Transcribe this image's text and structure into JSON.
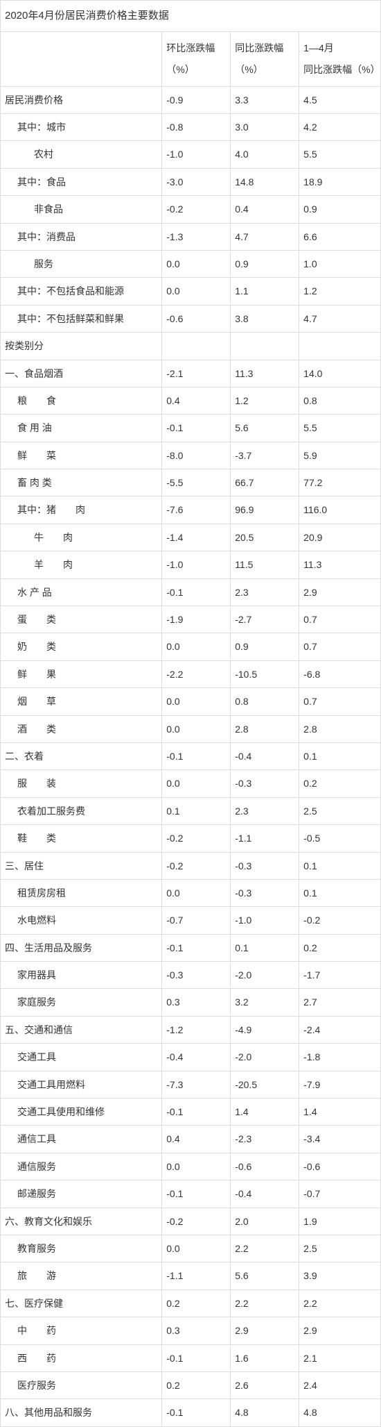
{
  "title": "2020年4月份居民消费价格主要数据",
  "headers": {
    "label": "",
    "col1_line1": "环比涨跌幅",
    "col1_line2": "（%）",
    "col2_line1": "同比涨跌幅",
    "col2_line2": "（%）",
    "col3_line1": "1—4月",
    "col3_line2": "同比涨跌幅（%）"
  },
  "rows": [
    {
      "label": "居民消费价格",
      "indent": 0,
      "c1": "-0.9",
      "c2": "3.3",
      "c3": "4.5"
    },
    {
      "label": "其中：城市",
      "indent": 1,
      "c1": "-0.8",
      "c2": "3.0",
      "c3": "4.2"
    },
    {
      "label": "农村",
      "indent": 2,
      "c1": "-1.0",
      "c2": "4.0",
      "c3": "5.5"
    },
    {
      "label": "其中：食品",
      "indent": 1,
      "c1": "-3.0",
      "c2": "14.8",
      "c3": "18.9"
    },
    {
      "label": "非食品",
      "indent": 2,
      "c1": "-0.2",
      "c2": "0.4",
      "c3": "0.9"
    },
    {
      "label": "其中：消费品",
      "indent": 1,
      "c1": "-1.3",
      "c2": "4.7",
      "c3": "6.6"
    },
    {
      "label": "服务",
      "indent": 2,
      "c1": "0.0",
      "c2": "0.9",
      "c3": "1.0"
    },
    {
      "label": "其中：不包括食品和能源",
      "indent": 1,
      "c1": "0.0",
      "c2": "1.1",
      "c3": "1.2"
    },
    {
      "label": "其中：不包括鲜菜和鲜果",
      "indent": 1,
      "c1": "-0.6",
      "c2": "3.8",
      "c3": "4.7"
    },
    {
      "label": "按类别分",
      "indent": 0,
      "c1": "",
      "c2": "",
      "c3": ""
    },
    {
      "label": "一、食品烟酒",
      "indent": 0,
      "c1": "-2.1",
      "c2": "11.3",
      "c3": "14.0"
    },
    {
      "label": "粮　　食",
      "indent": 1,
      "c1": "0.4",
      "c2": "1.2",
      "c3": "0.8"
    },
    {
      "label": "食 用 油",
      "indent": 1,
      "c1": "-0.1",
      "c2": "5.6",
      "c3": "5.5"
    },
    {
      "label": "鲜　　菜",
      "indent": 1,
      "c1": "-8.0",
      "c2": "-3.7",
      "c3": "5.9"
    },
    {
      "label": "畜 肉 类",
      "indent": 1,
      "c1": "-5.5",
      "c2": "66.7",
      "c3": "77.2"
    },
    {
      "label": "  其中：猪　　肉",
      "indent": 1,
      "c1": "-7.6",
      "c2": "96.9",
      "c3": "116.0"
    },
    {
      "label": "牛　　肉",
      "indent": 2,
      "c1": "-1.4",
      "c2": "20.5",
      "c3": "20.9"
    },
    {
      "label": "羊　　肉",
      "indent": 2,
      "c1": "-1.0",
      "c2": "11.5",
      "c3": "11.3"
    },
    {
      "label": "水 产 品",
      "indent": 1,
      "c1": "-0.1",
      "c2": "2.3",
      "c3": "2.9"
    },
    {
      "label": "蛋　　类",
      "indent": 1,
      "c1": "-1.9",
      "c2": "-2.7",
      "c3": "0.7"
    },
    {
      "label": "奶　　类",
      "indent": 1,
      "c1": "0.0",
      "c2": "0.9",
      "c3": "0.7"
    },
    {
      "label": "鲜　　果",
      "indent": 1,
      "c1": "-2.2",
      "c2": "-10.5",
      "c3": "-6.8"
    },
    {
      "label": "烟　　草",
      "indent": 1,
      "c1": "0.0",
      "c2": "0.8",
      "c3": "0.7"
    },
    {
      "label": "酒　　类",
      "indent": 1,
      "c1": "0.0",
      "c2": "2.8",
      "c3": "2.8"
    },
    {
      "label": "二、衣着",
      "indent": 0,
      "c1": "-0.1",
      "c2": "-0.4",
      "c3": "0.1"
    },
    {
      "label": "服　　装",
      "indent": 1,
      "c1": "0.0",
      "c2": "-0.3",
      "c3": "0.2"
    },
    {
      "label": "衣着加工服务费",
      "indent": 1,
      "c1": "0.1",
      "c2": "2.3",
      "c3": "2.5"
    },
    {
      "label": "鞋　　类",
      "indent": 1,
      "c1": "-0.2",
      "c2": "-1.1",
      "c3": "-0.5"
    },
    {
      "label": "三、居住",
      "indent": 0,
      "c1": "-0.2",
      "c2": "-0.3",
      "c3": "0.1"
    },
    {
      "label": "租赁房房租",
      "indent": 1,
      "c1": "0.0",
      "c2": "-0.3",
      "c3": "0.1"
    },
    {
      "label": "水电燃料",
      "indent": 1,
      "c1": "-0.7",
      "c2": "-1.0",
      "c3": "-0.2"
    },
    {
      "label": "四、生活用品及服务",
      "indent": 0,
      "c1": "-0.1",
      "c2": "0.1",
      "c3": "0.2"
    },
    {
      "label": "家用器具",
      "indent": 1,
      "c1": "-0.3",
      "c2": "-2.0",
      "c3": "-1.7"
    },
    {
      "label": "家庭服务",
      "indent": 1,
      "c1": "0.3",
      "c2": "3.2",
      "c3": "2.7"
    },
    {
      "label": "五、交通和通信",
      "indent": 0,
      "c1": "-1.2",
      "c2": "-4.9",
      "c3": "-2.4"
    },
    {
      "label": "交通工具",
      "indent": 1,
      "c1": "-0.4",
      "c2": "-2.0",
      "c3": "-1.8"
    },
    {
      "label": "交通工具用燃料",
      "indent": 1,
      "c1": "-7.3",
      "c2": "-20.5",
      "c3": "-7.9"
    },
    {
      "label": "交通工具使用和维修",
      "indent": 1,
      "c1": "-0.1",
      "c2": "1.4",
      "c3": "1.4"
    },
    {
      "label": "通信工具",
      "indent": 1,
      "c1": "0.4",
      "c2": "-2.3",
      "c3": "-3.4"
    },
    {
      "label": "通信服务",
      "indent": 1,
      "c1": "0.0",
      "c2": "-0.6",
      "c3": "-0.6"
    },
    {
      "label": "邮递服务",
      "indent": 1,
      "c1": "-0.1",
      "c2": "-0.4",
      "c3": "-0.7"
    },
    {
      "label": "六、教育文化和娱乐",
      "indent": 0,
      "c1": "-0.2",
      "c2": "2.0",
      "c3": "1.9"
    },
    {
      "label": "教育服务",
      "indent": 1,
      "c1": "0.0",
      "c2": "2.2",
      "c3": "2.5"
    },
    {
      "label": "旅　　游",
      "indent": 1,
      "c1": "-1.1",
      "c2": "5.6",
      "c3": "3.9"
    },
    {
      "label": "七、医疗保健",
      "indent": 0,
      "c1": "0.2",
      "c2": "2.2",
      "c3": "2.2"
    },
    {
      "label": "中　　药",
      "indent": 1,
      "c1": "0.3",
      "c2": "2.9",
      "c3": "2.9"
    },
    {
      "label": "西　　药",
      "indent": 1,
      "c1": "-0.1",
      "c2": "1.6",
      "c3": "2.1"
    },
    {
      "label": "医疗服务",
      "indent": 1,
      "c1": "0.2",
      "c2": "2.6",
      "c3": "2.4"
    },
    {
      "label": "八、其他用品和服务",
      "indent": 0,
      "c1": "-0.1",
      "c2": "4.8",
      "c3": "4.8"
    }
  ]
}
